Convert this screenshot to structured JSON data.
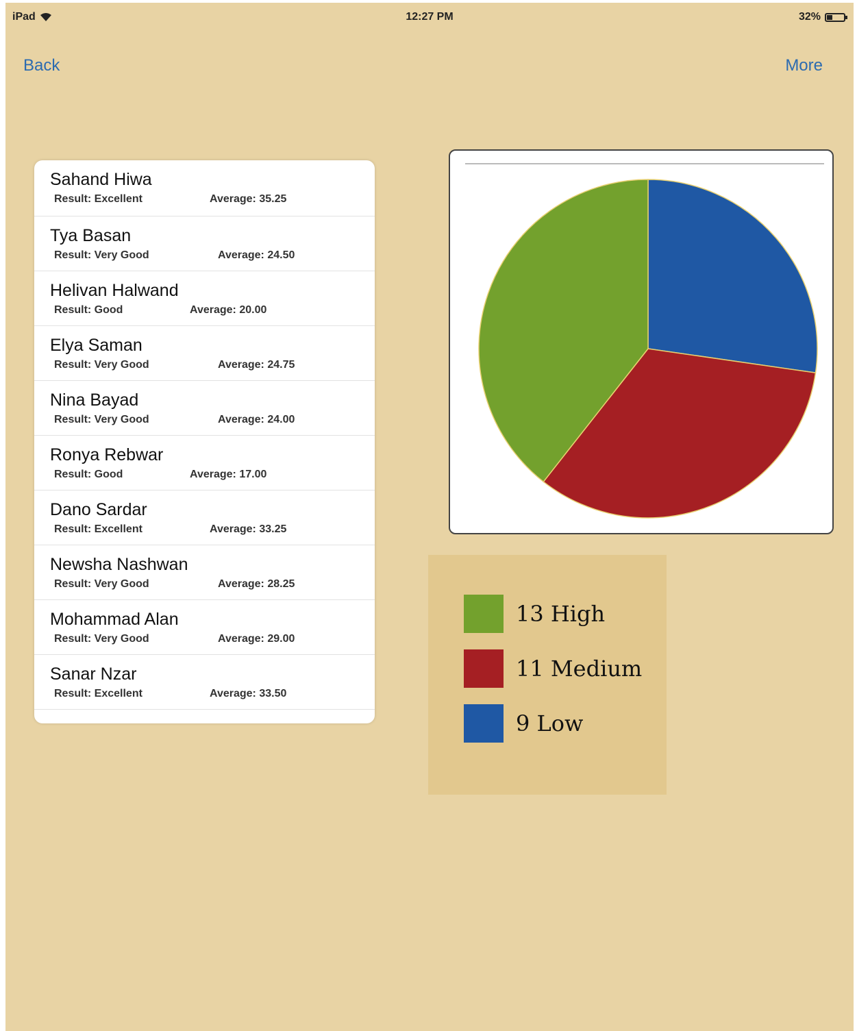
{
  "status_bar": {
    "device": "iPad",
    "time": "12:27 PM",
    "battery": "32%",
    "battery_level": 0.32
  },
  "nav": {
    "back_label": "Back",
    "more_label": "More"
  },
  "students": [
    {
      "name": "Sahand Hiwa",
      "result": "Result: Excellent",
      "average": "Average: 35.25"
    },
    {
      "name": "Tya Basan",
      "result": "Result: Very Good",
      "average": "Average: 24.50"
    },
    {
      "name": "Helivan Halwand",
      "result": "Result: Good",
      "average": "Average: 20.00"
    },
    {
      "name": "Elya Saman",
      "result": "Result: Very Good",
      "average": "Average: 24.75"
    },
    {
      "name": "Nina Bayad",
      "result": "Result: Very Good",
      "average": "Average: 24.00"
    },
    {
      "name": "Ronya Rebwar",
      "result": "Result: Good",
      "average": "Average: 17.00"
    },
    {
      "name": "Dano Sardar",
      "result": "Result: Excellent",
      "average": "Average: 33.25"
    },
    {
      "name": "Newsha Nashwan",
      "result": "Result: Very Good",
      "average": "Average: 28.25"
    },
    {
      "name": "Mohammad Alan",
      "result": "Result: Very Good",
      "average": "Average: 29.00"
    },
    {
      "name": "Sanar Nzar",
      "result": "Result: Excellent",
      "average": "Average: 33.50"
    }
  ],
  "legend": {
    "items": [
      {
        "label": "13 High",
        "color": "#73a12d"
      },
      {
        "label": "11 Medium",
        "color": "#a51f23"
      },
      {
        "label": "9 Low",
        "color": "#1f58a4"
      }
    ]
  },
  "chart_data": {
    "type": "pie",
    "categories": [
      "High",
      "Medium",
      "Low"
    ],
    "values": [
      13,
      11,
      9
    ],
    "colors": [
      "#73a12d",
      "#a51f23",
      "#1f58a4"
    ],
    "title": "",
    "legend_position": "below"
  }
}
